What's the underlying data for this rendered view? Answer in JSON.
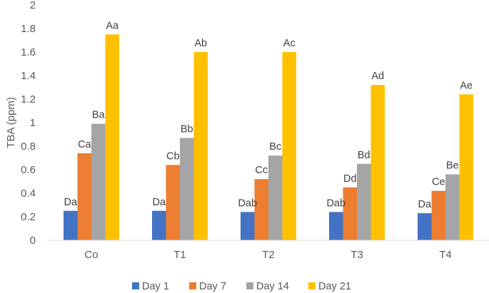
{
  "chart_data": {
    "type": "bar",
    "title": "",
    "xlabel": "",
    "ylabel": "TBA (ppm)",
    "ylim": [
      0,
      2
    ],
    "y_ticks": [
      "0",
      "0.2",
      "0.4",
      "0.6",
      "0.8",
      "1",
      "1.2",
      "1.4",
      "1.6",
      "1.8",
      "2"
    ],
    "grid": false,
    "legend_position": "bottom",
    "categories": [
      "Co",
      "T1",
      "T2",
      "T3",
      "T4"
    ],
    "series": [
      {
        "name": "Day 1",
        "color": "#4472C4",
        "values": [
          0.25,
          0.25,
          0.24,
          0.24,
          0.23
        ],
        "labels": [
          "Da",
          "Da",
          "Dab",
          "Dab",
          "Da"
        ]
      },
      {
        "name": "Day 7",
        "color": "#ED7D31",
        "values": [
          0.74,
          0.64,
          0.52,
          0.45,
          0.42
        ],
        "labels": [
          "Ca",
          "Cb",
          "Cc",
          "Dd",
          "Ce"
        ]
      },
      {
        "name": "Day 14",
        "color": "#A5A5A5",
        "values": [
          0.99,
          0.87,
          0.72,
          0.65,
          0.56
        ],
        "labels": [
          "Ba",
          "Bb",
          "Bc",
          "Bd",
          "Be"
        ]
      },
      {
        "name": "Day 21",
        "color": "#FFC000",
        "values": [
          1.75,
          1.6,
          1.6,
          1.32,
          1.24
        ],
        "labels": [
          "Aa",
          "Ab",
          "Ac",
          "Ad",
          "Ae"
        ]
      }
    ]
  }
}
